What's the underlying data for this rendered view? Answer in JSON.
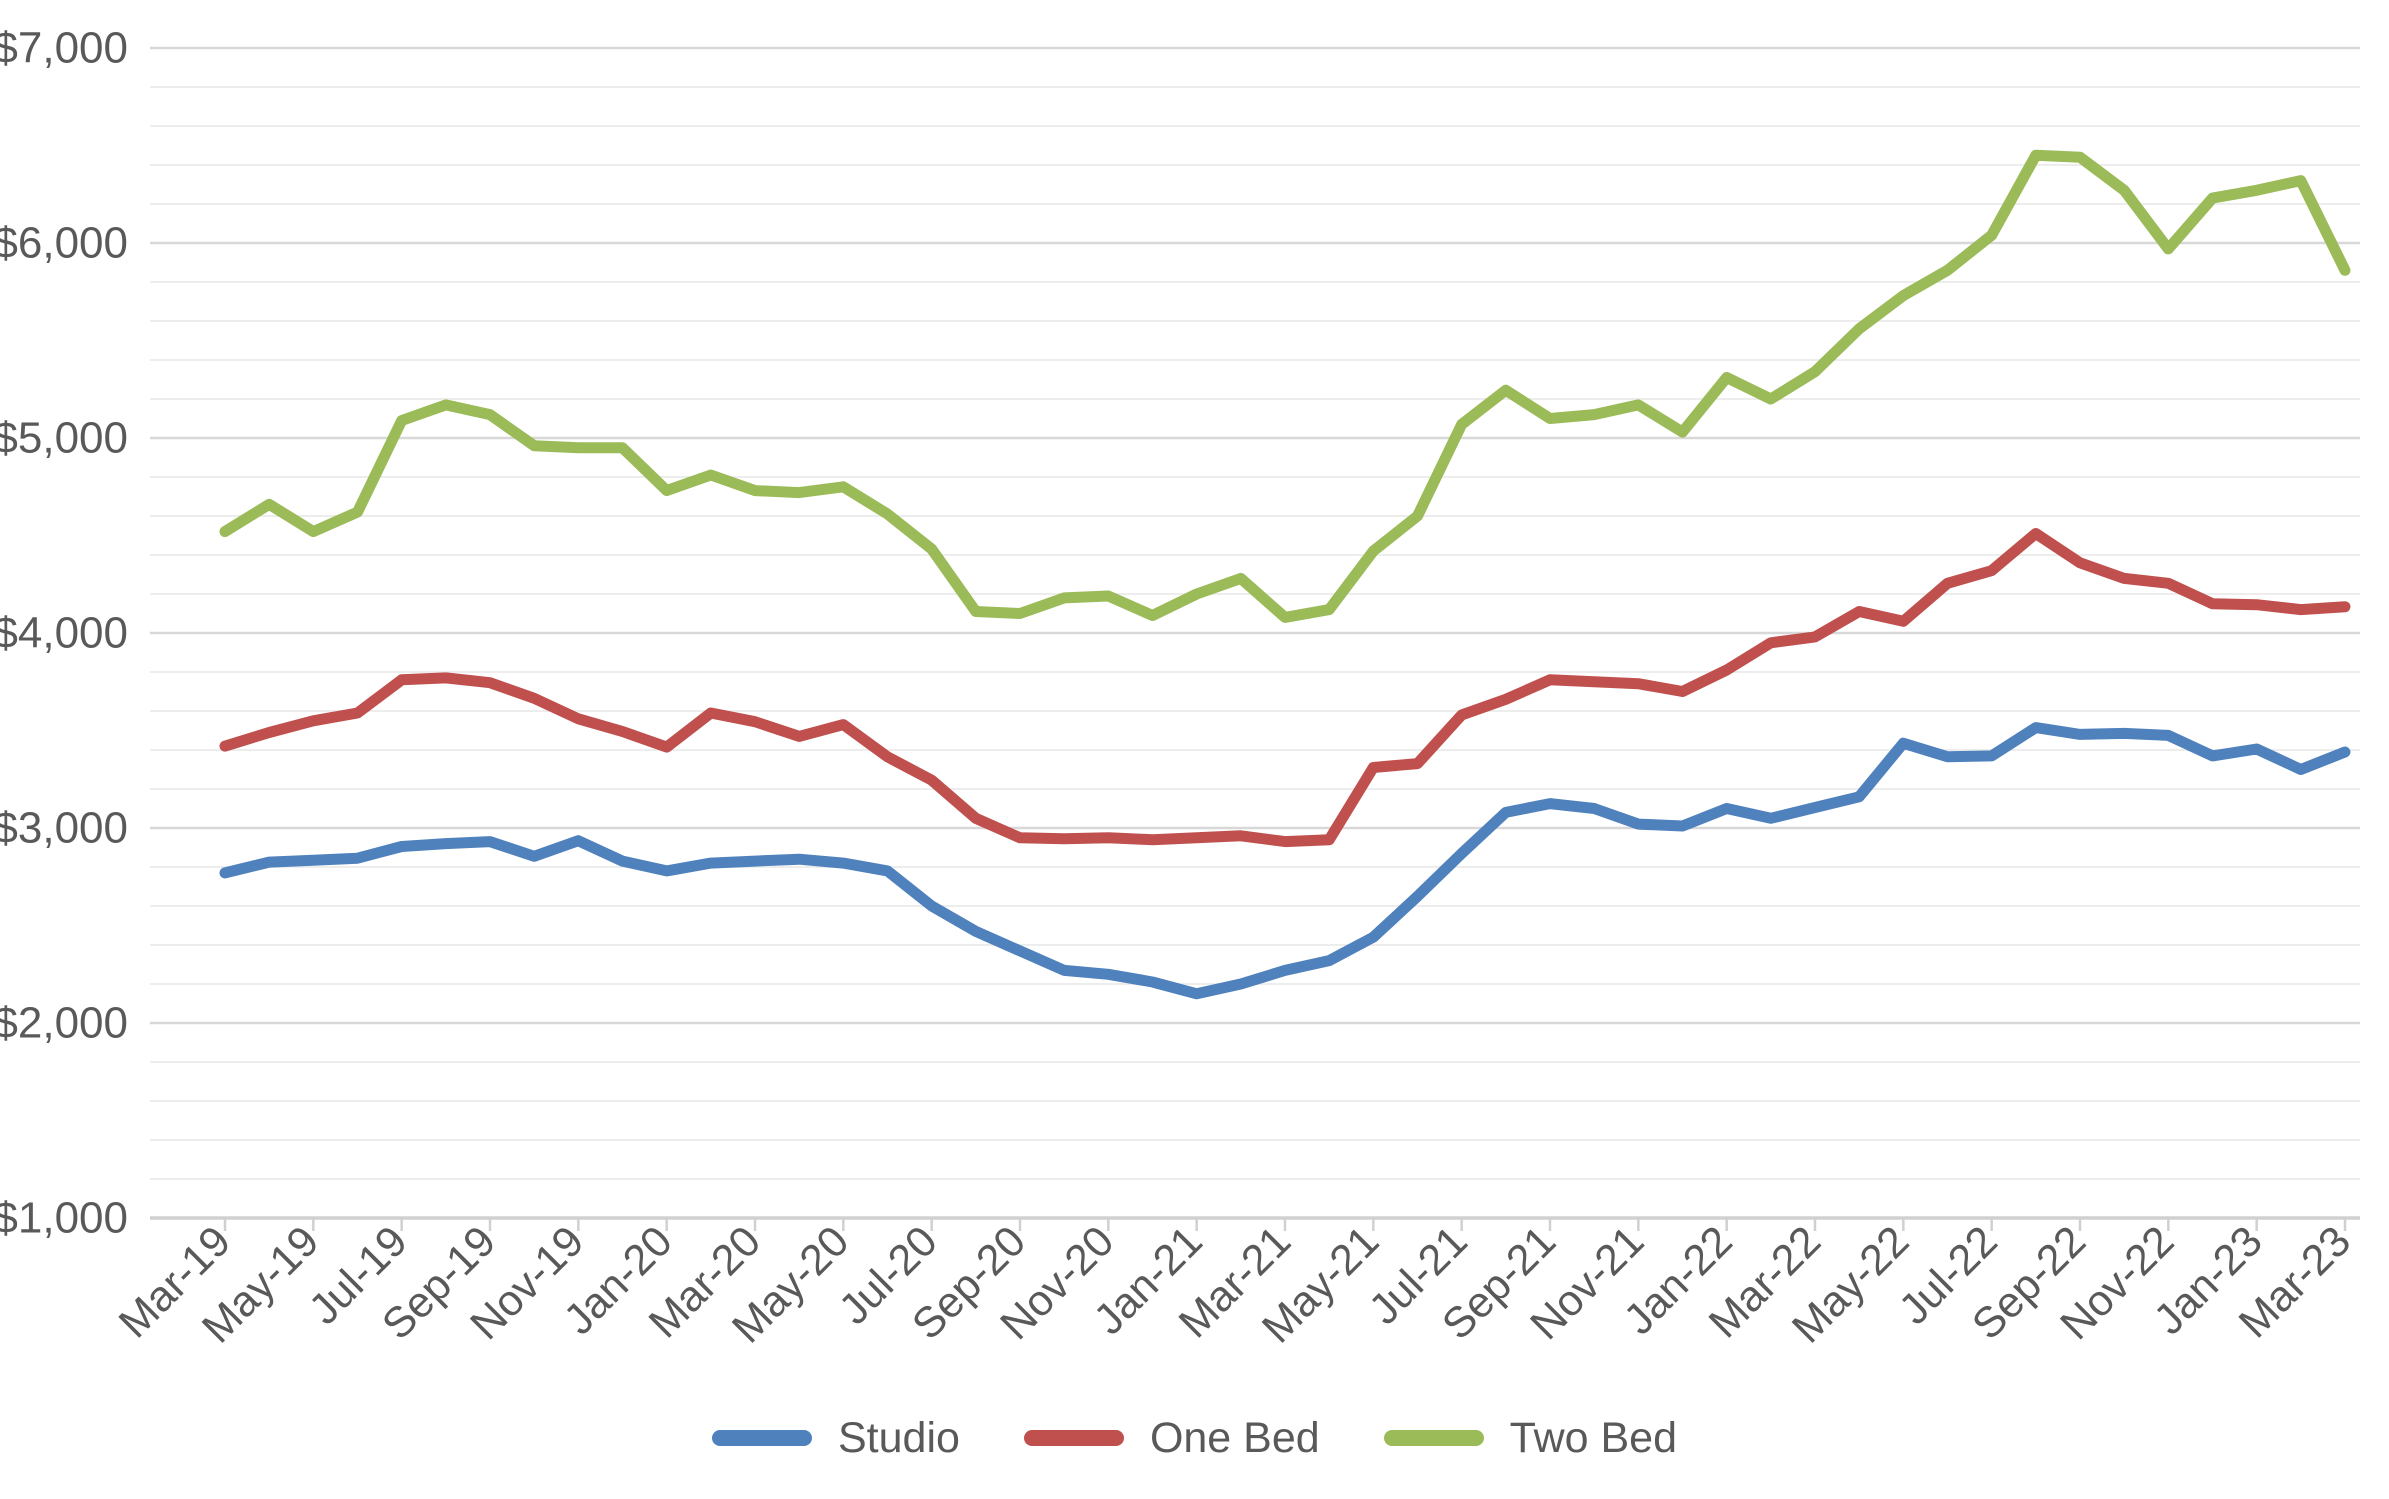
{
  "chart_data": {
    "type": "line",
    "title": "",
    "x": [
      "Mar-19",
      "Apr-19",
      "May-19",
      "Jun-19",
      "Jul-19",
      "Aug-19",
      "Sep-19",
      "Oct-19",
      "Nov-19",
      "Dec-19",
      "Jan-20",
      "Feb-20",
      "Mar-20",
      "Apr-20",
      "May-20",
      "Jun-20",
      "Jul-20",
      "Aug-20",
      "Sep-20",
      "Oct-20",
      "Nov-20",
      "Dec-20",
      "Jan-21",
      "Feb-21",
      "Mar-21",
      "Apr-21",
      "May-21",
      "Jun-21",
      "Jul-21",
      "Aug-21",
      "Sep-21",
      "Oct-21",
      "Nov-21",
      "Dec-21",
      "Jan-22",
      "Feb-22",
      "Mar-22",
      "Apr-22",
      "May-22",
      "Jun-22",
      "Jul-22",
      "Aug-22",
      "Sep-22",
      "Oct-22",
      "Nov-22",
      "Dec-22",
      "Jan-23",
      "Feb-23",
      "Mar-23"
    ],
    "x_tick_labels": [
      "Mar-19",
      "May-19",
      "Jul-19",
      "Sep-19",
      "Nov-19",
      "Jan-20",
      "Mar-20",
      "May-20",
      "Jul-20",
      "Sep-20",
      "Nov-20",
      "Jan-21",
      "Mar-21",
      "May-21",
      "Jul-21",
      "Sep-21",
      "Nov-21",
      "Jan-22",
      "Mar-22",
      "May-22",
      "Jul-22",
      "Sep-22",
      "Nov-22",
      "Jan-23",
      "Mar-23"
    ],
    "y_axis": {
      "min": 1000,
      "max": 7000,
      "major_step": 1000,
      "minor_step": 200,
      "tick_labels": [
        "$7,000",
        "$6,000",
        "$5,000",
        "$4,000",
        "$3,000",
        "$2,000",
        "$1,000"
      ]
    },
    "series": [
      {
        "name": "Studio",
        "color": "#4f81bd",
        "values": [
          2770,
          2825,
          2835,
          2845,
          2905,
          2920,
          2930,
          2855,
          2935,
          2830,
          2780,
          2820,
          2830,
          2840,
          2820,
          2780,
          2600,
          2470,
          2370,
          2270,
          2250,
          2210,
          2150,
          2200,
          2270,
          2320,
          2440,
          2650,
          2870,
          3080,
          3125,
          3100,
          3020,
          3010,
          3100,
          3050,
          3105,
          3160,
          3435,
          3365,
          3370,
          3515,
          3480,
          3485,
          3475,
          3370,
          3405,
          3300,
          3390
        ]
      },
      {
        "name": "One Bed",
        "color": "#c0504d",
        "values": [
          3420,
          3490,
          3550,
          3590,
          3760,
          3770,
          3745,
          3665,
          3560,
          3495,
          3415,
          3590,
          3545,
          3470,
          3530,
          3365,
          3245,
          3050,
          2950,
          2945,
          2950,
          2940,
          2950,
          2960,
          2930,
          2940,
          3310,
          3330,
          3580,
          3660,
          3760,
          3750,
          3740,
          3700,
          3810,
          3950,
          3980,
          4110,
          4060,
          4255,
          4320,
          4510,
          4360,
          4280,
          4255,
          4150,
          4145,
          4120,
          4135
        ]
      },
      {
        "name": "Two Bed",
        "color": "#9bbb59",
        "values": [
          4520,
          4660,
          4520,
          4620,
          5090,
          5170,
          5120,
          4960,
          4950,
          4950,
          4730,
          4810,
          4730,
          4720,
          4750,
          4610,
          4430,
          4110,
          4100,
          4180,
          4190,
          4090,
          4200,
          4280,
          4080,
          4120,
          4420,
          4600,
          5070,
          5245,
          5100,
          5120,
          5170,
          5030,
          5310,
          5200,
          5340,
          5560,
          5730,
          5860,
          6040,
          6450,
          6440,
          6270,
          5970,
          6230,
          6270,
          6320,
          5860
        ]
      }
    ],
    "legend": {
      "position": "bottom"
    },
    "grid": {
      "major_color": "#d8d8d8",
      "minor_color": "#ededed",
      "axis_color": "#d0d0d0",
      "grid_on": true
    },
    "text_color": "#595959"
  }
}
